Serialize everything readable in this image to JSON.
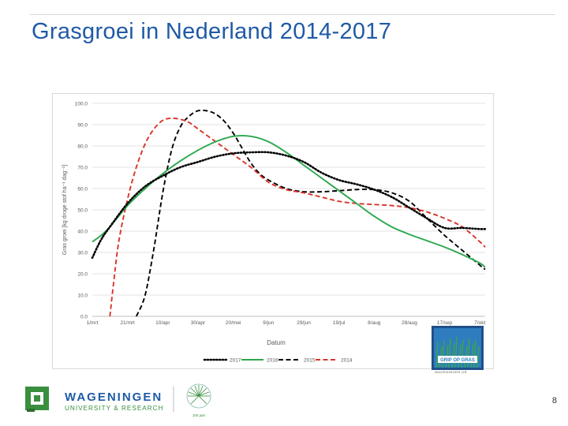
{
  "slide": {
    "title": "Grasgroei in Nederland 2014-2017",
    "page_number": "8"
  },
  "chart_data": {
    "type": "line",
    "xlabel": "Datum",
    "ylabel": "Gras groei [kg droge stof ha⁻¹ dag⁻¹]",
    "ylim": [
      0,
      100
    ],
    "yticks": [
      "0.0",
      "10.0",
      "20.0",
      "30.0",
      "40.0",
      "50.0",
      "60.0",
      "70.0",
      "80.0",
      "90.0",
      "100.0"
    ],
    "x_range_days": [
      0,
      223
    ],
    "xticks": [
      {
        "label": "1/mrt",
        "day": 0
      },
      {
        "label": "21/mrt",
        "day": 20
      },
      {
        "label": "10/apr",
        "day": 40
      },
      {
        "label": "30/apr",
        "day": 60
      },
      {
        "label": "20/mei",
        "day": 80
      },
      {
        "label": "9/jun",
        "day": 100
      },
      {
        "label": "29/jun",
        "day": 120
      },
      {
        "label": "19/jul",
        "day": 140
      },
      {
        "label": "8/aug",
        "day": 160
      },
      {
        "label": "28/aug",
        "day": 180
      },
      {
        "label": "17/sep",
        "day": 200
      },
      {
        "label": "7/okt",
        "day": 220
      }
    ],
    "grid": true,
    "legend_position": "bottom",
    "series": [
      {
        "name": "2017",
        "color": "#000000",
        "style": "dotted",
        "x": [
          0,
          5,
          10,
          20,
          30,
          40,
          50,
          60,
          70,
          80,
          90,
          100,
          110,
          120,
          130,
          140,
          150,
          160,
          170,
          180,
          190,
          200,
          210,
          220,
          223
        ],
        "y": [
          27.5,
          36,
          42,
          53,
          61,
          66,
          70,
          72.5,
          75,
          76.5,
          77,
          77,
          75.5,
          72.5,
          67.5,
          64,
          62,
          59.5,
          56,
          51,
          46,
          41.5,
          41.5,
          41,
          41
        ]
      },
      {
        "name": "2016",
        "color": "#2ca84e",
        "style": "solid",
        "x": [
          0,
          5,
          10,
          20,
          30,
          40,
          50,
          60,
          70,
          80,
          90,
          100,
          110,
          120,
          130,
          140,
          150,
          160,
          170,
          180,
          190,
          200,
          210,
          220,
          223
        ],
        "y": [
          35,
          38,
          42,
          52,
          60,
          67,
          73,
          78,
          82,
          84.5,
          84.5,
          82,
          77,
          71,
          65,
          59,
          53,
          47,
          42,
          38.5,
          35.5,
          32.5,
          29,
          25,
          23
        ]
      },
      {
        "name": "2015",
        "color": "#000000",
        "style": "dashed",
        "x": [
          25,
          30,
          35,
          40,
          45,
          50,
          55,
          60,
          65,
          70,
          75,
          80,
          85,
          90,
          95,
          100,
          110,
          120,
          130,
          140,
          150,
          160,
          170,
          180,
          190,
          200,
          210,
          220,
          223
        ],
        "y": [
          0,
          10,
          32,
          58,
          78,
          89,
          94,
          96.5,
          96.5,
          95,
          91.5,
          86,
          79,
          72,
          67,
          64,
          60,
          58.5,
          58.5,
          59,
          59.5,
          59.5,
          58,
          54,
          46,
          38,
          31,
          24,
          22
        ]
      },
      {
        "name": "2014",
        "color": "#d9342b",
        "style": "dashed",
        "x": [
          10,
          12,
          15,
          20,
          25,
          30,
          35,
          40,
          45,
          50,
          55,
          60,
          70,
          80,
          90,
          100,
          110,
          120,
          130,
          140,
          150,
          160,
          170,
          180,
          190,
          200,
          210,
          220,
          223
        ],
        "y": [
          0,
          15,
          35,
          55,
          70,
          81,
          88,
          92,
          93,
          92.5,
          91,
          88,
          82,
          76,
          70,
          63,
          59.5,
          58,
          56,
          54,
          53,
          52.5,
          52,
          51,
          49,
          46,
          42,
          35,
          32.5
        ]
      }
    ]
  },
  "badge": {
    "label": "GRIP OP GRAS",
    "caption": "WAGENINGEN UR"
  },
  "logos": {
    "wageningen_line1": "WAGENINGEN",
    "wageningen_line2": "UNIVERSITY & RESEARCH",
    "partner_caption": "100 jaar"
  }
}
